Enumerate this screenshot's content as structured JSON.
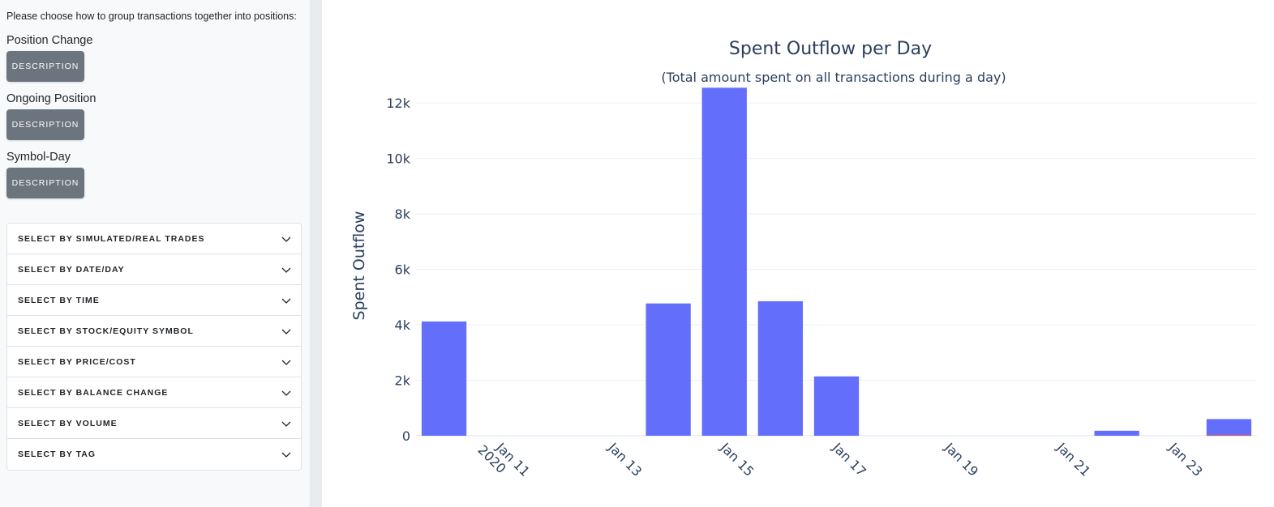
{
  "sidebar": {
    "intro": "Please choose how to group transactions together into positions:",
    "groups": [
      {
        "title": "Position Change",
        "button": "DESCRIPTION"
      },
      {
        "title": "Ongoing Position",
        "button": "DESCRIPTION"
      },
      {
        "title": "Symbol-Day",
        "button": "DESCRIPTION"
      }
    ],
    "filters": [
      {
        "label": "SELECT BY SIMULATED/REAL TRADES",
        "icon": "chevron-down-icon"
      },
      {
        "label": "SELECT BY DATE/DAY",
        "icon": "chevron-down-icon"
      },
      {
        "label": "SELECT BY TIME",
        "icon": "chevron-down-icon"
      },
      {
        "label": "SELECT BY STOCK/EQUITY SYMBOL",
        "icon": "chevron-down-icon"
      },
      {
        "label": "SELECT BY PRICE/COST",
        "icon": "chevron-down-icon"
      },
      {
        "label": "SELECT BY BALANCE CHANGE",
        "icon": "chevron-down-icon"
      },
      {
        "label": "SELECT BY VOLUME",
        "icon": "chevron-down-icon"
      },
      {
        "label": "SELECT BY TAG",
        "icon": "chevron-down-icon"
      }
    ]
  },
  "chart_data": {
    "type": "bar",
    "title": "Spent Outflow per Day",
    "subtitle": "(Total amount spent on all transactions during a day)",
    "xlabel": "",
    "ylabel": "Spent Outflow",
    "x_type": "date",
    "xlim": [
      "2020-01-09T12:00",
      "2020-01-24T12:00"
    ],
    "ylim": [
      0,
      12500
    ],
    "x_ticks": [
      "2020-01-11",
      "2020-01-13",
      "2020-01-15",
      "2020-01-17",
      "2020-01-19",
      "2020-01-21",
      "2020-01-23"
    ],
    "x_tick_labels": [
      "Jan 11",
      "Jan 13",
      "Jan 15",
      "Jan 17",
      "Jan 19",
      "Jan 21",
      "Jan 23"
    ],
    "x_tick_sublabel": "2020",
    "y_ticks": [
      0,
      2000,
      4000,
      6000,
      8000,
      10000,
      12000
    ],
    "y_tick_labels": [
      "0",
      "2k",
      "4k",
      "6k",
      "8k",
      "10k",
      "12k"
    ],
    "grid": true,
    "legend": "none",
    "series": [
      {
        "color": "#636efa",
        "x": [
          "2020-01-10",
          "2020-01-14",
          "2020-01-15",
          "2020-01-16",
          "2020-01-17",
          "2020-01-22",
          "2020-01-24"
        ],
        "values": [
          4120,
          4770,
          12550,
          4850,
          2140,
          180,
          600
        ]
      },
      {
        "color": "#ef553b",
        "x": [
          "2020-01-24"
        ],
        "values": [
          25
        ]
      }
    ]
  }
}
